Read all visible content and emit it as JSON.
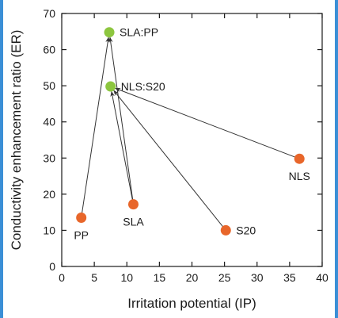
{
  "chart_data": {
    "type": "scatter",
    "xlabel": "Irritation potential (IP)",
    "ylabel": "Conductivity enhancement ratio (ER)",
    "xlim": [
      0,
      40
    ],
    "ylim": [
      0,
      70
    ],
    "xticks": [
      "0",
      "5",
      "10",
      "15",
      "20",
      "25",
      "30",
      "35",
      "40"
    ],
    "yticks": [
      "0",
      "10",
      "20",
      "30",
      "40",
      "50",
      "60",
      "70"
    ],
    "grid": false,
    "colors": {
      "individual": "#e8662a",
      "combination": "#8dc63f",
      "arrow": "#333333"
    },
    "points": [
      {
        "label": "PP",
        "x": 3.0,
        "y": 13.5,
        "group": "individual",
        "label_pos": "below"
      },
      {
        "label": "SLA",
        "x": 11.0,
        "y": 17.2,
        "group": "individual",
        "label_pos": "below"
      },
      {
        "label": "S20",
        "x": 25.2,
        "y": 10.0,
        "group": "individual",
        "label_pos": "right"
      },
      {
        "label": "NLS",
        "x": 36.5,
        "y": 29.8,
        "group": "individual",
        "label_pos": "below"
      },
      {
        "label": "SLA:PP",
        "x": 7.3,
        "y": 64.8,
        "group": "combination",
        "label_pos": "right"
      },
      {
        "label": "NLS:S20",
        "x": 7.5,
        "y": 49.8,
        "group": "combination",
        "label_pos": "right"
      }
    ],
    "arrows": [
      {
        "from": "PP",
        "to": "SLA:PP"
      },
      {
        "from": "SLA",
        "to": "SLA:PP"
      },
      {
        "from": "SLA",
        "to": "NLS:S20"
      },
      {
        "from": "S20",
        "to": "NLS:S20"
      },
      {
        "from": "NLS",
        "to": "NLS:S20"
      }
    ]
  }
}
